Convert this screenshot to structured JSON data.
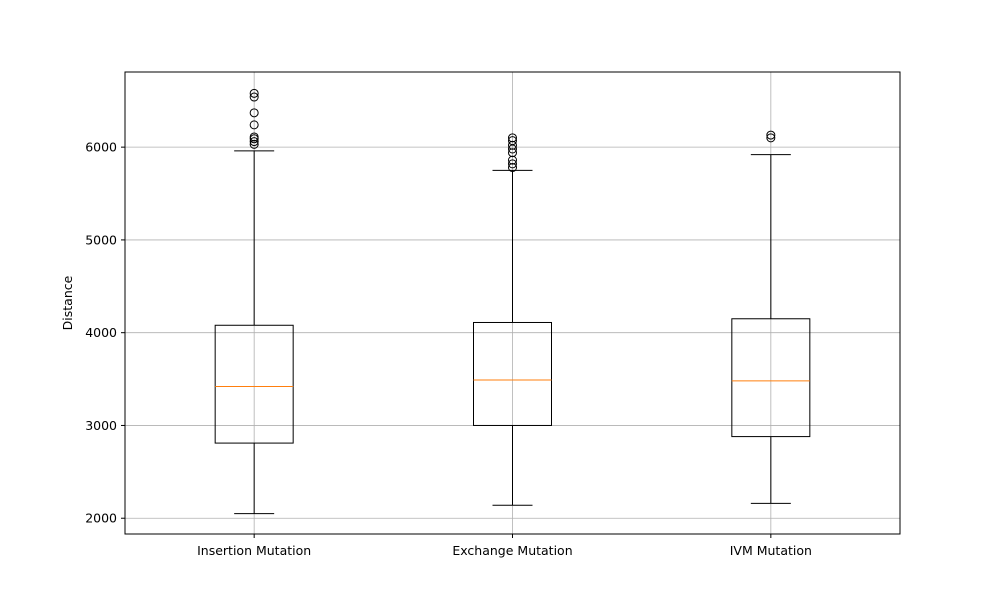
{
  "chart_data": {
    "type": "box",
    "title": "",
    "xlabel": "",
    "ylabel": "Distance",
    "ylim": [
      1830,
      6810
    ],
    "yticks": [
      2000,
      3000,
      4000,
      5000,
      6000
    ],
    "grid": true,
    "colors": {
      "box": "#000000",
      "median": "#ff7f0e",
      "grid": "#b0b0b0"
    },
    "series": [
      {
        "name": "Insertion Mutation",
        "whisker_low": 2050,
        "q1": 2810,
        "median": 3420,
        "q3": 4080,
        "whisker_high": 5960,
        "outliers": [
          6030,
          6060,
          6090,
          6110,
          6240,
          6370,
          6540,
          6580
        ]
      },
      {
        "name": "Exchange Mutation",
        "whisker_low": 2140,
        "q1": 3000,
        "median": 3490,
        "q3": 4110,
        "whisker_high": 5750,
        "outliers": [
          5780,
          5820,
          5860,
          5940,
          5980,
          6020,
          6070,
          6100
        ]
      },
      {
        "name": "IVM Mutation",
        "whisker_low": 2160,
        "q1": 2880,
        "median": 3480,
        "q3": 4150,
        "whisker_high": 5920,
        "outliers": [
          6100,
          6130
        ]
      }
    ]
  }
}
